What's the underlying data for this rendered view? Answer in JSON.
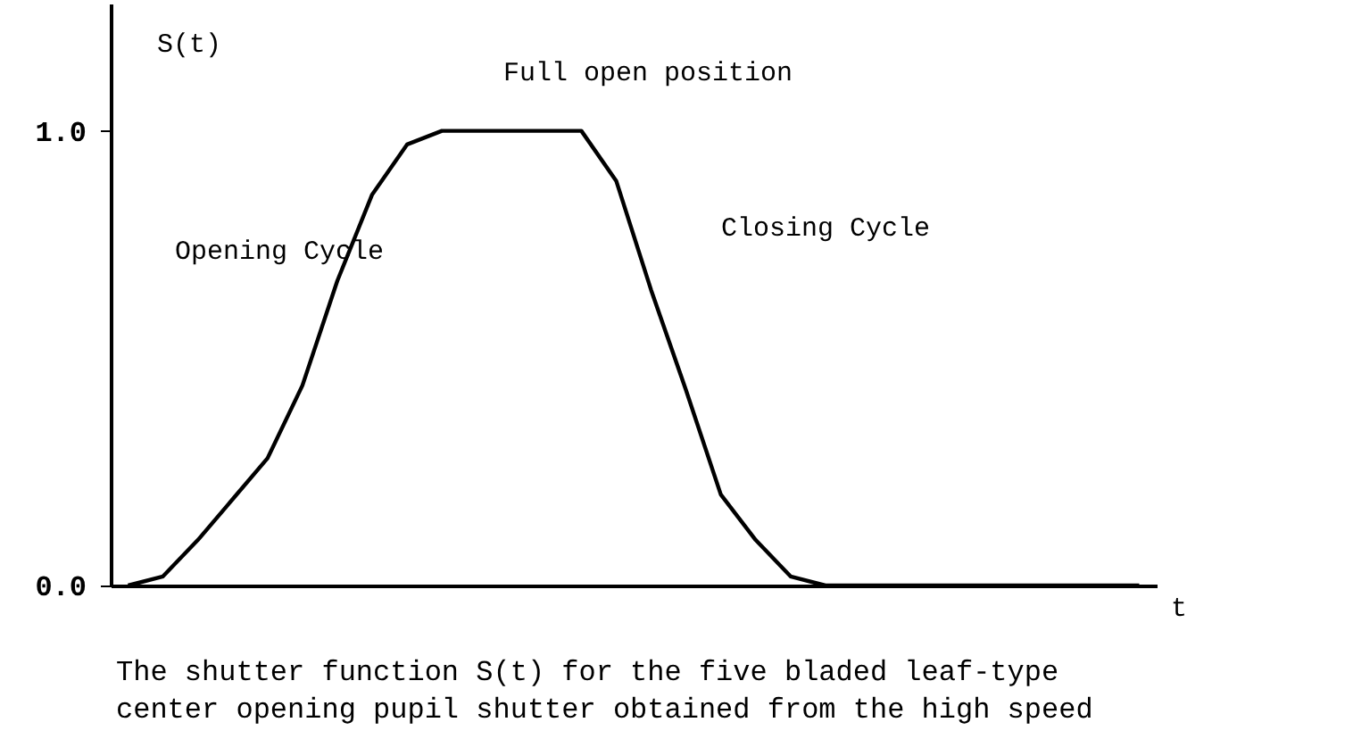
{
  "chart_data": {
    "type": "line",
    "ylabel": "S(t)",
    "xlabel": "t",
    "categories": [
      null,
      null,
      null,
      null,
      null,
      null,
      null,
      null,
      null,
      null,
      null,
      null,
      null,
      null,
      null,
      null,
      null,
      null,
      null,
      null,
      null,
      null,
      null,
      null,
      null,
      null,
      null,
      null,
      null,
      null
    ],
    "series": [
      {
        "color": "#000000",
        "values": [
          0,
          0.02,
          0.1,
          0.19,
          0.28,
          0.44,
          0.67,
          0.86,
          0.97,
          1.0,
          1.0,
          1.0,
          1.0,
          1.0,
          0.89,
          0.65,
          0.43,
          0.2,
          0.1,
          0.02,
          0,
          0,
          0,
          0,
          0,
          0,
          0,
          0,
          0,
          0
        ]
      }
    ],
    "ylim": [
      0,
      1.28
    ],
    "yticks": [
      {
        "value": 0,
        "label": "0.0"
      },
      {
        "value": 1,
        "label": "1.0"
      }
    ],
    "tick_labels": "y",
    "grid": false,
    "marker": "none",
    "line_style": "solid",
    "annotations": [
      "Full open position",
      "Opening Cycle",
      "Closing Cycle",
      "The shutter function S(t) for the five bladed leaf-type center opening pupil shutter obtained from the high speed"
    ]
  }
}
